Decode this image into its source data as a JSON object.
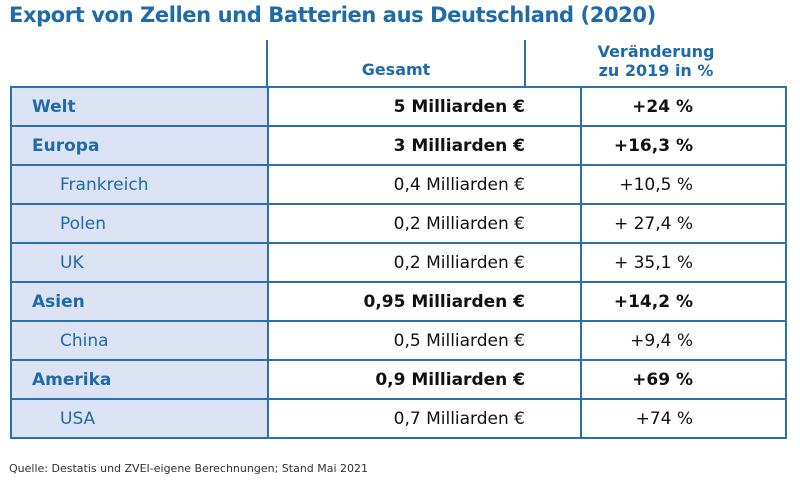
{
  "title": "Export von Zellen und Batterien aus Deutschland (2020)",
  "headers": {
    "gesamt": "Gesamt",
    "veraenderung_line1": "Veränderung",
    "veraenderung_line2": "zu 2019 in %"
  },
  "colors": {
    "accent": "#1f6aa9",
    "row_label_bg": "#dbe3f5",
    "border": "#2a6fae"
  },
  "chart_data": {
    "type": "table",
    "title": "Export von Zellen und Batterien aus Deutschland (2020)",
    "columns": [
      "",
      "Gesamt",
      "Veränderung zu 2019 in %"
    ],
    "rows": [
      {
        "region": "Welt",
        "level": "main",
        "gesamt": "5 Milliarden €",
        "change": "+24 %"
      },
      {
        "region": "Europa",
        "level": "main",
        "gesamt": "3 Milliarden €",
        "change": "+16,3 %"
      },
      {
        "region": "Frankreich",
        "level": "sub",
        "gesamt": "0,4 Milliarden €",
        "change": "+10,5 %"
      },
      {
        "region": "Polen",
        "level": "sub",
        "gesamt": "0,2 Milliarden €",
        "change": "+ 27,4 %"
      },
      {
        "region": "UK",
        "level": "sub",
        "gesamt": "0,2 Milliarden €",
        "change": "+ 35,1 %"
      },
      {
        "region": "Asien",
        "level": "main",
        "gesamt": "0,95 Milliarden €",
        "change": "+14,2 %"
      },
      {
        "region": "China",
        "level": "sub",
        "gesamt": "0,5 Milliarden €",
        "change": "+9,4 %"
      },
      {
        "region": "Amerika",
        "level": "main",
        "gesamt": "0,9 Milliarden €",
        "change": "+69 %"
      },
      {
        "region": "USA",
        "level": "sub",
        "gesamt": "0,7 Milliarden €",
        "change": "+74 %"
      }
    ]
  },
  "source": "Quelle: Destatis und ZVEI-eigene Berechnungen; Stand Mai 2021"
}
